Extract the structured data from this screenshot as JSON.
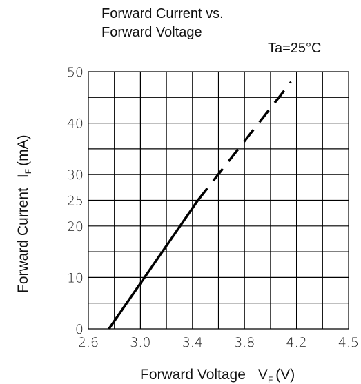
{
  "chart_data": {
    "type": "line",
    "title_line1": "Forward Current vs.",
    "title_line2": "Forward Voltage",
    "annotation": "Ta=25°C",
    "xlabel_main": "Forward Voltage",
    "xlabel_symbol": "V",
    "xlabel_sub": "F",
    "xlabel_unit": "(V)",
    "ylabel_main": "Forward Current",
    "ylabel_symbol": "I",
    "ylabel_sub": "F",
    "ylabel_unit": "(mA)",
    "x_ticks": [
      "2.6",
      "3.0",
      "3.4",
      "3.8",
      "4.2",
      "4.5"
    ],
    "y_ticks": [
      {
        "value": 0,
        "label": "0"
      },
      {
        "value": 10,
        "label": "10"
      },
      {
        "value": 20,
        "label": "20"
      },
      {
        "value": 25,
        "label": "25"
      },
      {
        "value": 30,
        "label": "30"
      },
      {
        "value": 40,
        "label": "40"
      },
      {
        "value": 50,
        "label": "50"
      }
    ],
    "xlim": [
      2.6,
      4.5
    ],
    "ylim": [
      0,
      50
    ],
    "grid": true,
    "series": [
      {
        "style": "solid",
        "color": "#000000",
        "x": [
          2.75,
          3.4
        ],
        "y": [
          0,
          25
        ]
      },
      {
        "style": "dashed",
        "color": "#000000",
        "x": [
          3.4,
          4.08
        ],
        "y": [
          25,
          48
        ]
      }
    ]
  }
}
